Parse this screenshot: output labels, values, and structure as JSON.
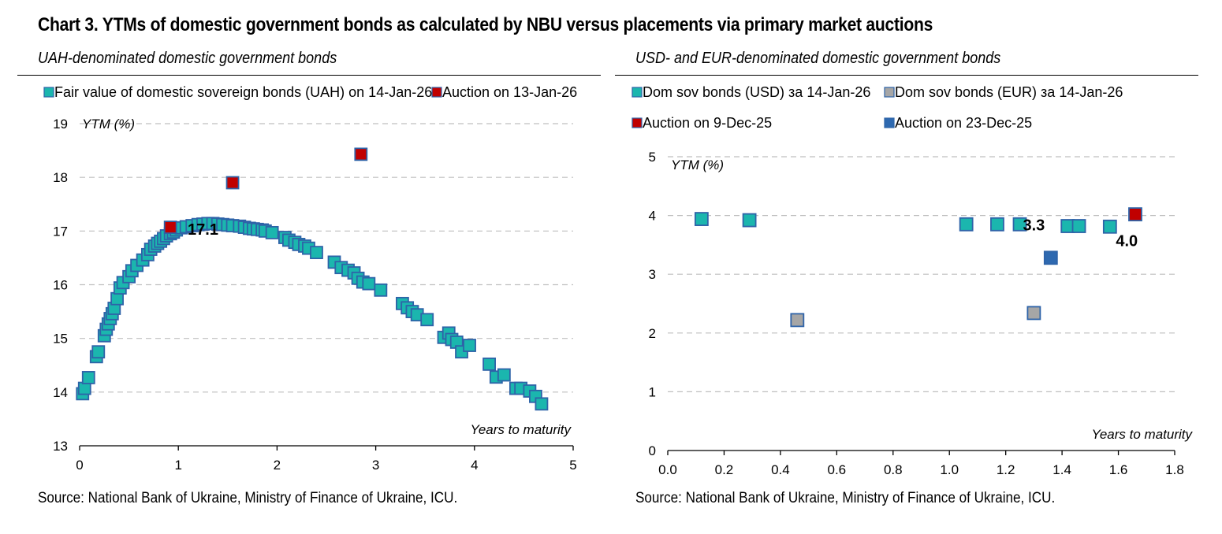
{
  "title": "Chart 3. YTMs of domestic government bonds as calculated by NBU versus placements via primary market auctions",
  "colors": {
    "teal": "#1BB6AE",
    "border": "#2E63A8",
    "red": "#C00000",
    "gray": "#A6A6A6",
    "blue": "#2E69B0",
    "grid": "#BFBFBF"
  },
  "chart_data": [
    {
      "type": "scatter",
      "subtitle": "UAH-denominated domestic government bonds",
      "ylabel": "YTM (%)",
      "xlabel": "Years to maturity",
      "xlim": [
        0,
        5
      ],
      "ylim": [
        13,
        19
      ],
      "xticks": [
        "0",
        "1",
        "2",
        "3",
        "4",
        "5"
      ],
      "yticks": [
        "13",
        "14",
        "15",
        "16",
        "17",
        "18",
        "19"
      ],
      "grid": true,
      "legend": [
        "Fair value of domestic sovereign bonds (UAH) on 14-Jan-26",
        "Auction on 13-Jan-26"
      ],
      "source": "Source: National Bank of Ukraine, Ministry of Finance of Ukraine, ICU.",
      "series": [
        {
          "name": "Fair value of domestic sovereign bonds (UAH) on 14-Jan-26",
          "color": "teal",
          "x": [
            0.03,
            0.05,
            0.09,
            0.17,
            0.19,
            0.25,
            0.27,
            0.29,
            0.31,
            0.33,
            0.35,
            0.38,
            0.41,
            0.44,
            0.5,
            0.53,
            0.58,
            0.64,
            0.69,
            0.72,
            0.76,
            0.79,
            0.82,
            0.85,
            0.88,
            0.92,
            0.95,
            0.98,
            1.03,
            1.08,
            1.14,
            1.2,
            1.25,
            1.3,
            1.35,
            1.4,
            1.45,
            1.5,
            1.55,
            1.62,
            1.67,
            1.72,
            1.76,
            1.8,
            1.85,
            1.88,
            1.95,
            2.08,
            2.12,
            2.18,
            2.22,
            2.28,
            2.32,
            2.4,
            2.58,
            2.65,
            2.72,
            2.78,
            2.82,
            2.87,
            2.93,
            3.05,
            3.27,
            3.32,
            3.37,
            3.42,
            3.52,
            3.69,
            3.74,
            3.77,
            3.82,
            3.87,
            3.95,
            4.15,
            4.22,
            4.3,
            4.42,
            4.47,
            4.56,
            4.62,
            4.68
          ],
          "y": [
            13.97,
            14.07,
            14.27,
            14.66,
            14.75,
            15.05,
            15.17,
            15.27,
            15.37,
            15.46,
            15.56,
            15.74,
            15.94,
            16.04,
            16.15,
            16.26,
            16.36,
            16.46,
            16.56,
            16.66,
            16.72,
            16.77,
            16.81,
            16.86,
            16.91,
            16.95,
            16.98,
            17.02,
            17.06,
            17.08,
            17.1,
            17.12,
            17.13,
            17.14,
            17.14,
            17.13,
            17.12,
            17.11,
            17.1,
            17.09,
            17.07,
            17.05,
            17.04,
            17.03,
            17.02,
            17.0,
            16.97,
            16.88,
            16.83,
            16.79,
            16.75,
            16.72,
            16.68,
            16.6,
            16.42,
            16.32,
            16.27,
            16.22,
            16.12,
            16.05,
            16.02,
            15.9,
            15.65,
            15.57,
            15.5,
            15.44,
            15.35,
            15.02,
            15.1,
            14.98,
            14.93,
            14.75,
            14.87,
            14.52,
            14.28,
            14.32,
            14.07,
            14.07,
            14.02,
            13.92,
            13.78
          ]
        },
        {
          "name": "Auction on 13-Jan-26",
          "color": "red",
          "x": [
            0.92,
            1.55,
            2.85
          ],
          "y": [
            17.07,
            17.9,
            18.43
          ]
        }
      ],
      "annotations": [
        {
          "text": "17.1",
          "x": 1.25,
          "y": 16.93
        }
      ]
    },
    {
      "type": "scatter",
      "subtitle": "USD- and EUR-denominated domestic government bonds",
      "ylabel": "YTM (%)",
      "xlabel": "Years to maturity",
      "xlim": [
        0,
        1.8
      ],
      "ylim": [
        0,
        5
      ],
      "xticks": [
        "0.0",
        "0.2",
        "0.4",
        "0.6",
        "0.8",
        "1.0",
        "1.2",
        "1.4",
        "1.6",
        "1.8"
      ],
      "yticks": [
        "0",
        "1",
        "2",
        "3",
        "4",
        "5"
      ],
      "grid": true,
      "legend": [
        "Dom sov bonds (USD) за 14-Jan-26",
        "Dom sov bonds (EUR) за 14-Jan-26",
        "Auction on 9-Dec-25",
        "Auction on 23-Dec-25"
      ],
      "source": "Source: National Bank of Ukraine, Ministry of Finance of Ukraine, ICU.",
      "series": [
        {
          "name": "Dom sov bonds (USD) за 14-Jan-26",
          "color": "teal",
          "x": [
            0.12,
            0.29,
            1.06,
            1.17,
            1.25,
            1.42,
            1.46,
            1.57
          ],
          "y": [
            3.94,
            3.92,
            3.85,
            3.85,
            3.85,
            3.82,
            3.82,
            3.81
          ]
        },
        {
          "name": "Dom sov bonds (EUR) за 14-Jan-26",
          "color": "gray",
          "x": [
            0.46,
            1.3
          ],
          "y": [
            2.22,
            2.34
          ]
        },
        {
          "name": "Auction on 9-Dec-25",
          "color": "red",
          "x": [
            1.66
          ],
          "y": [
            4.02
          ]
        },
        {
          "name": "Auction on 23-Dec-25",
          "color": "blue",
          "x": [
            1.36
          ],
          "y": [
            3.28
          ]
        }
      ],
      "annotations": [
        {
          "text": "3.3",
          "x": 1.3,
          "y": 3.75
        },
        {
          "text": "4.0",
          "x": 1.63,
          "y": 3.48
        }
      ]
    }
  ]
}
